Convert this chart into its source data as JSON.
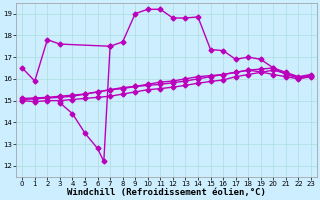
{
  "background_color": "#cceeff",
  "line_color": "#bb00bb",
  "marker": "D",
  "markersize": 2.5,
  "linewidth": 1.0,
  "xlabel": "Windchill (Refroidissement éolien,°C)",
  "xlabel_fontsize": 6.5,
  "ylabel_ticks": [
    12,
    13,
    14,
    15,
    16,
    17,
    18,
    19
  ],
  "xlabel_ticks": [
    0,
    1,
    2,
    3,
    4,
    5,
    6,
    7,
    8,
    9,
    10,
    11,
    12,
    13,
    14,
    15,
    16,
    17,
    18,
    19,
    20,
    21,
    22,
    23
  ],
  "xlim": [
    -0.5,
    23.5
  ],
  "ylim": [
    11.5,
    19.5
  ],
  "line1": [
    [
      0,
      16.5
    ],
    [
      1,
      15.9
    ],
    [
      2,
      17.8
    ],
    [
      3,
      17.6
    ],
    [
      7,
      17.5
    ],
    [
      8,
      17.7
    ],
    [
      9,
      19.0
    ],
    [
      10,
      19.2
    ],
    [
      11,
      19.2
    ],
    [
      12,
      18.8
    ],
    [
      13,
      18.8
    ],
    [
      14,
      18.85
    ],
    [
      15,
      17.35
    ],
    [
      16,
      17.3
    ],
    [
      17,
      16.9
    ],
    [
      18,
      17.0
    ],
    [
      19,
      16.9
    ],
    [
      20,
      16.5
    ],
    [
      21,
      16.2
    ],
    [
      22,
      16.05
    ],
    [
      23,
      16.15
    ]
  ],
  "line_dip": [
    [
      3,
      14.9
    ],
    [
      4,
      14.4
    ],
    [
      5,
      13.5
    ],
    [
      6,
      12.8
    ],
    [
      6.5,
      12.2
    ],
    [
      7,
      17.5
    ]
  ],
  "line2": [
    [
      0,
      15.0
    ],
    [
      1,
      14.95
    ],
    [
      2,
      15.0
    ],
    [
      3,
      15.0
    ],
    [
      4,
      15.05
    ],
    [
      5,
      15.1
    ],
    [
      6,
      15.15
    ],
    [
      7,
      15.2
    ],
    [
      8,
      15.3
    ],
    [
      9,
      15.4
    ],
    [
      10,
      15.5
    ],
    [
      11,
      15.55
    ],
    [
      12,
      15.62
    ],
    [
      13,
      15.7
    ],
    [
      14,
      15.8
    ],
    [
      15,
      15.88
    ],
    [
      16,
      15.95
    ],
    [
      17,
      16.1
    ],
    [
      18,
      16.2
    ],
    [
      19,
      16.3
    ],
    [
      20,
      16.4
    ],
    [
      21,
      16.25
    ],
    [
      22,
      16.05
    ],
    [
      23,
      16.15
    ]
  ],
  "line3": [
    [
      0,
      15.1
    ],
    [
      1,
      15.12
    ],
    [
      2,
      15.15
    ],
    [
      3,
      15.2
    ],
    [
      4,
      15.25
    ],
    [
      5,
      15.3
    ],
    [
      6,
      15.4
    ],
    [
      7,
      15.5
    ],
    [
      8,
      15.6
    ],
    [
      9,
      15.65
    ],
    [
      10,
      15.7
    ],
    [
      11,
      15.75
    ],
    [
      12,
      15.82
    ],
    [
      13,
      15.9
    ],
    [
      14,
      16.0
    ],
    [
      15,
      16.1
    ],
    [
      16,
      16.2
    ],
    [
      17,
      16.3
    ],
    [
      18,
      16.4
    ],
    [
      19,
      16.32
    ],
    [
      20,
      16.2
    ],
    [
      21,
      16.1
    ],
    [
      22,
      16.0
    ],
    [
      23,
      16.1
    ]
  ],
  "line4": [
    [
      0,
      15.05
    ],
    [
      1,
      15.08
    ],
    [
      2,
      15.12
    ],
    [
      3,
      15.15
    ],
    [
      4,
      15.2
    ],
    [
      5,
      15.3
    ],
    [
      6,
      15.4
    ],
    [
      7,
      15.5
    ],
    [
      8,
      15.55
    ],
    [
      9,
      15.65
    ],
    [
      10,
      15.75
    ],
    [
      11,
      15.85
    ],
    [
      12,
      15.9
    ],
    [
      13,
      16.0
    ],
    [
      14,
      16.1
    ],
    [
      15,
      16.15
    ],
    [
      16,
      16.2
    ],
    [
      17,
      16.3
    ],
    [
      18,
      16.4
    ],
    [
      19,
      16.45
    ],
    [
      20,
      16.5
    ],
    [
      21,
      16.3
    ],
    [
      22,
      16.1
    ],
    [
      23,
      16.2
    ]
  ]
}
